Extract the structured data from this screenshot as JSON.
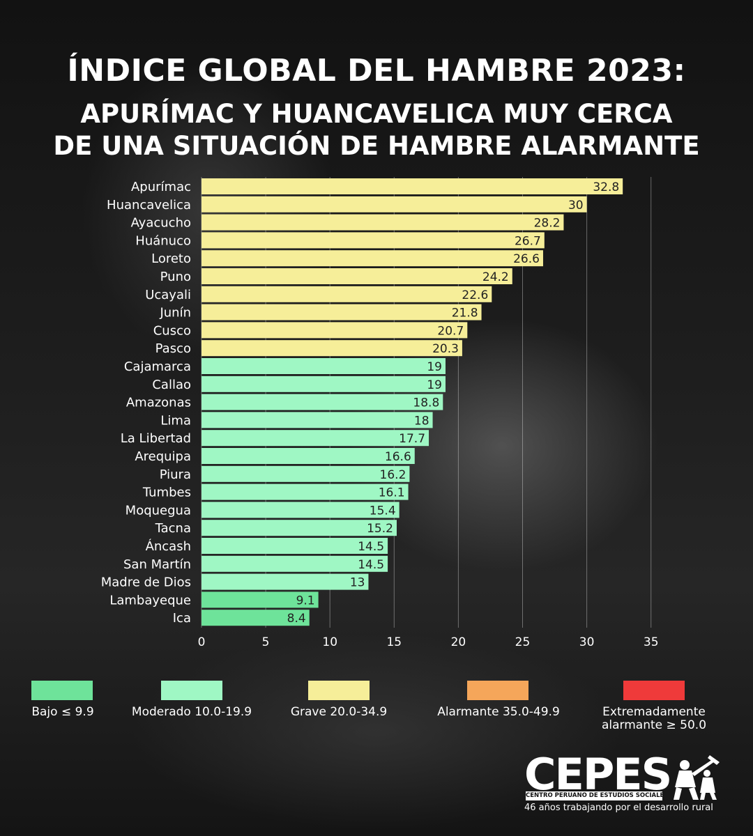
{
  "header": {
    "title_line1": "ÍNDICE GLOBAL DEL HAMBRE 2023:",
    "title_line2": "APURÍMAC Y HUANCAVELICA MUY CERCA",
    "title_line3": "DE UNA SITUACIÓN DE HAMBRE ALARMANTE"
  },
  "chart_data": {
    "type": "bar",
    "orientation": "horizontal",
    "categories": [
      "Apurímac",
      "Huancavelica",
      "Ayacucho",
      "Huánuco",
      "Loreto",
      "Puno",
      "Ucayali",
      "Junín",
      "Cusco",
      "Pasco",
      "Cajamarca",
      "Callao",
      "Amazonas",
      "Lima",
      "La Libertad",
      "Arequipa",
      "Piura",
      "Tumbes",
      "Moquegua",
      "Tacna",
      "Áncash",
      "San Martín",
      "Madre de Dios",
      "Lambayeque",
      "Ica"
    ],
    "values": [
      32.8,
      30,
      28.2,
      26.7,
      26.6,
      24.2,
      22.6,
      21.8,
      20.7,
      20.3,
      19,
      19,
      18.8,
      18,
      17.7,
      16.6,
      16.2,
      16.1,
      15.4,
      15.2,
      14.5,
      14.5,
      13,
      9.1,
      8.4
    ],
    "value_labels": [
      "32.8",
      "30",
      "28.2",
      "26.7",
      "26.6",
      "24.2",
      "22.6",
      "21.8",
      "20.7",
      "20.3",
      "19",
      "19",
      "18.8",
      "18",
      "17.7",
      "16.6",
      "16.2",
      "16.1",
      "15.4",
      "15.2",
      "14.5",
      "14.5",
      "13",
      "9.1",
      "8.4"
    ],
    "xticks": [
      "0",
      "5",
      "10",
      "15",
      "20",
      "25",
      "30",
      "35"
    ],
    "xlim": [
      0,
      38
    ],
    "grid": "vertical",
    "colors": {
      "bajo": "#6ee39a",
      "moderado": "#9ff7c4",
      "grave": "#f6ee99"
    }
  },
  "legend": [
    {
      "label": "Bajo ≤ 9.9",
      "color": "#6ee39a"
    },
    {
      "label": "Moderado 10.0-19.9",
      "color": "#9ff7c4"
    },
    {
      "label": "Grave 20.0-34.9",
      "color": "#f6ee99"
    },
    {
      "label": "Alarmante 35.0-49.9",
      "color": "#f5a65a"
    },
    {
      "label_line1": "Extremadamente",
      "label_line2": "alarmante ≥ 50.0",
      "color": "#ef3a3a"
    }
  ],
  "logo": {
    "wordmark": "CEPES",
    "subtitle": "CENTRO PERUANO DE ESTUDIOS SOCIALES",
    "tagline": "46 años trabajando por el desarrollo rural"
  }
}
